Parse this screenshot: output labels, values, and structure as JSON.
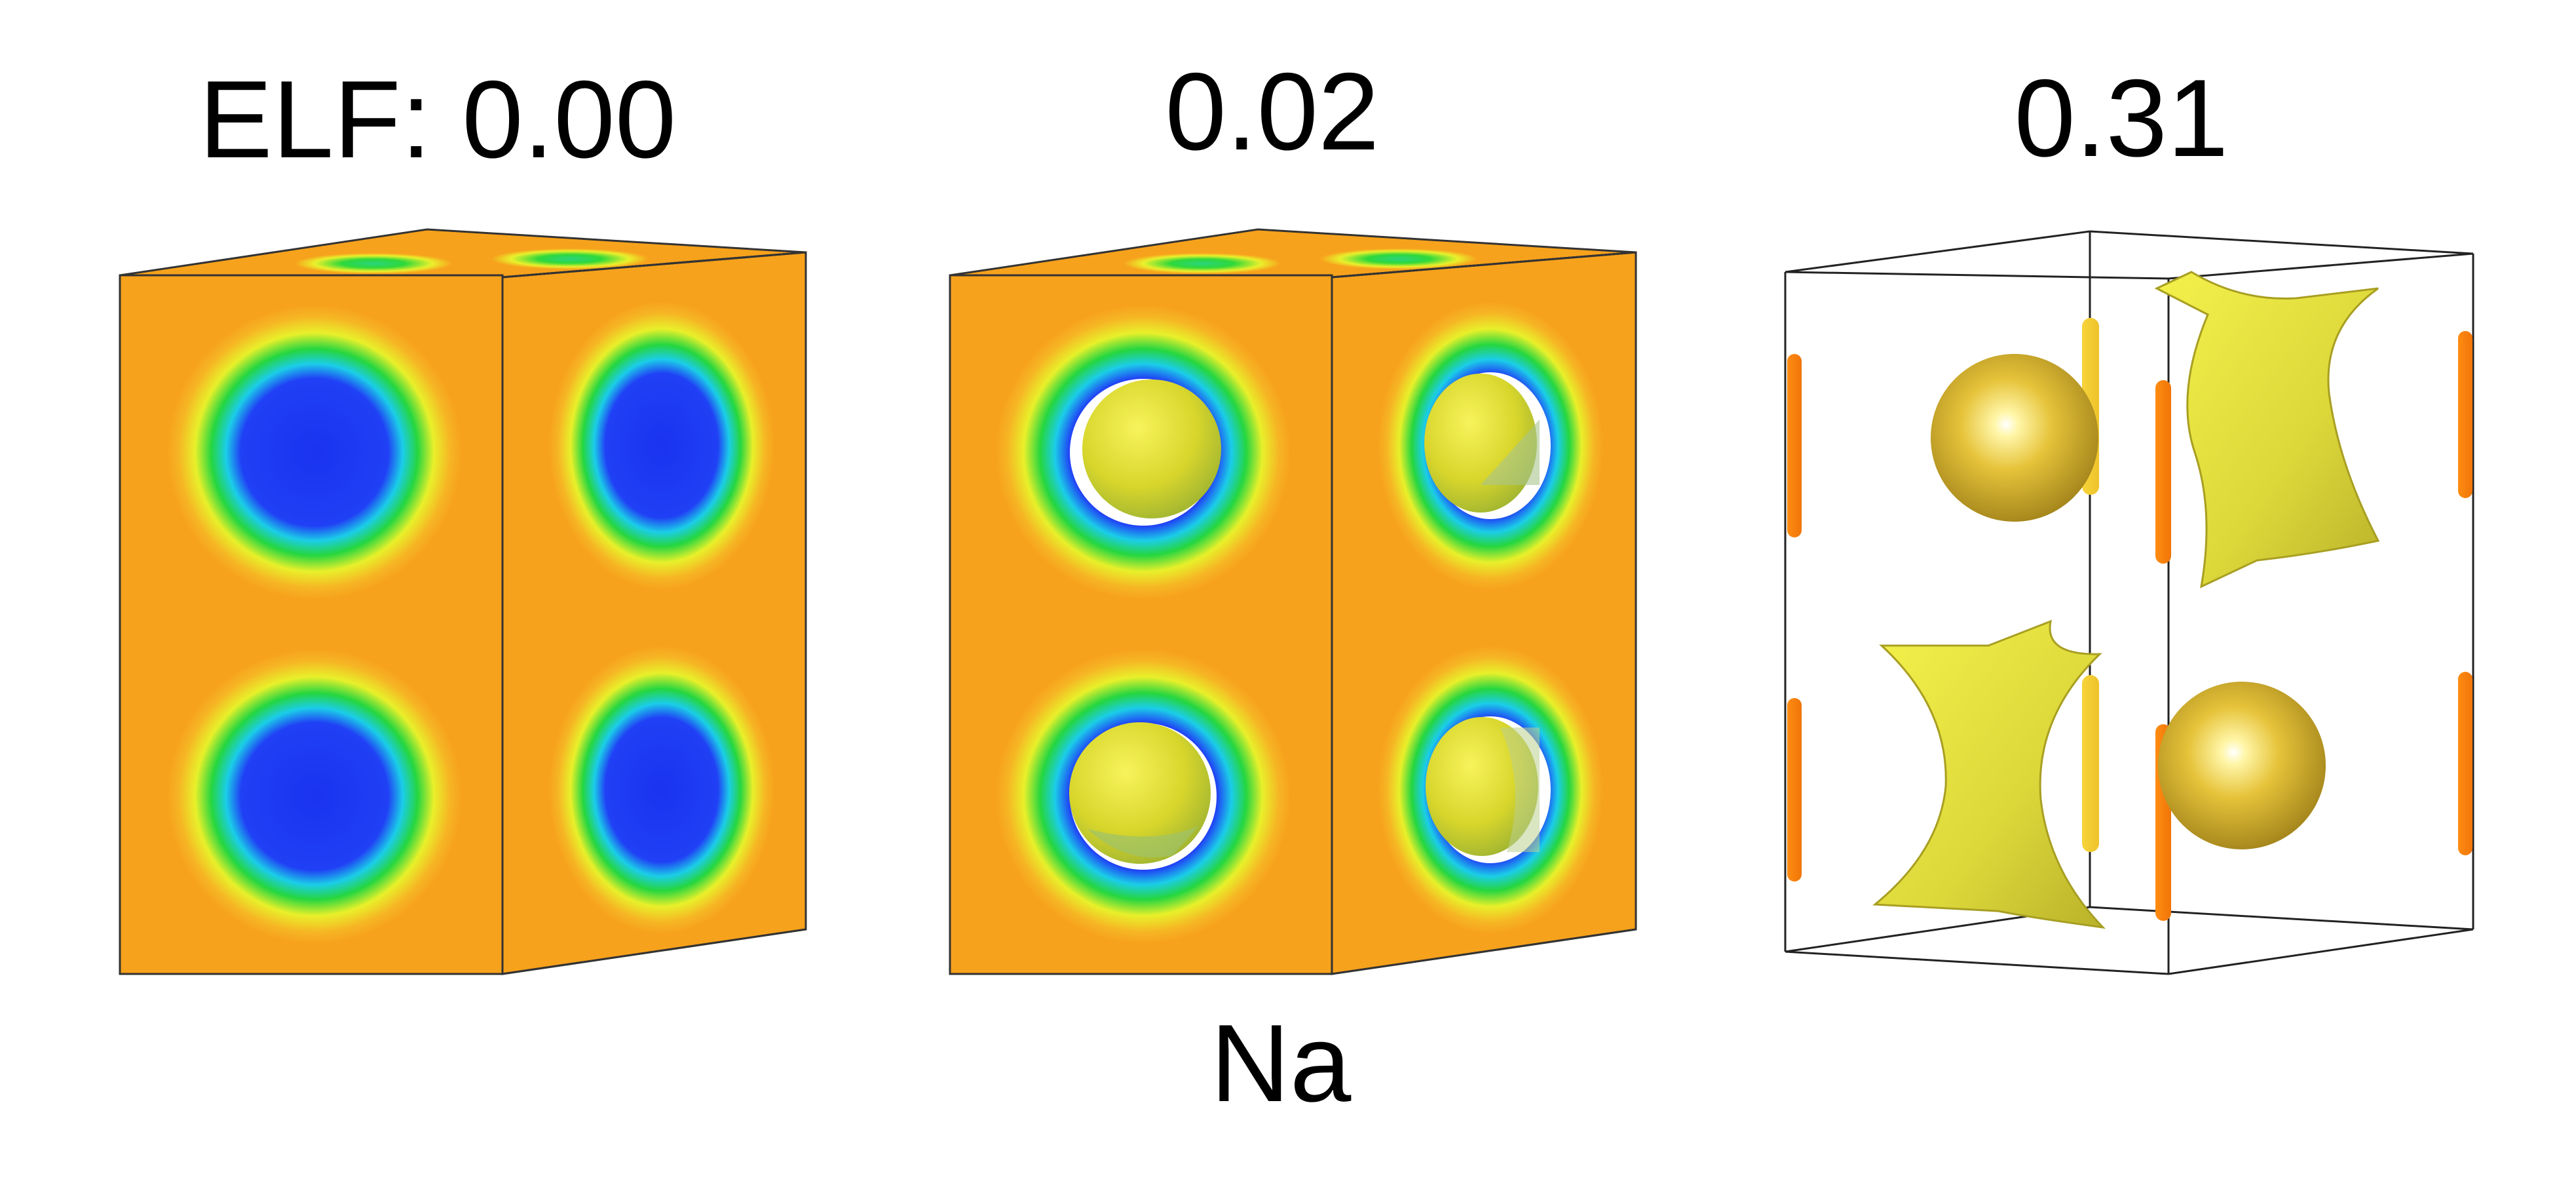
{
  "figure": {
    "panels": [
      {
        "label": "ELF: 0.00",
        "isovalue": 0.0,
        "style": "filled-cube"
      },
      {
        "label": "0.02",
        "isovalue": 0.02,
        "style": "filled-cube-with-spheres"
      },
      {
        "label": "0.31",
        "isovalue": 0.31,
        "style": "isosurface-wireframe"
      }
    ],
    "element_label": "Na",
    "colors": {
      "orange": "#f7a21c",
      "deep_orange": "#fb7a0a",
      "yellow": "#f2ee2a",
      "green": "#29d33b",
      "cyan": "#1bd0e6",
      "blue": "#1e36f2",
      "gold": "#d9b52c",
      "line": "#222222"
    }
  }
}
